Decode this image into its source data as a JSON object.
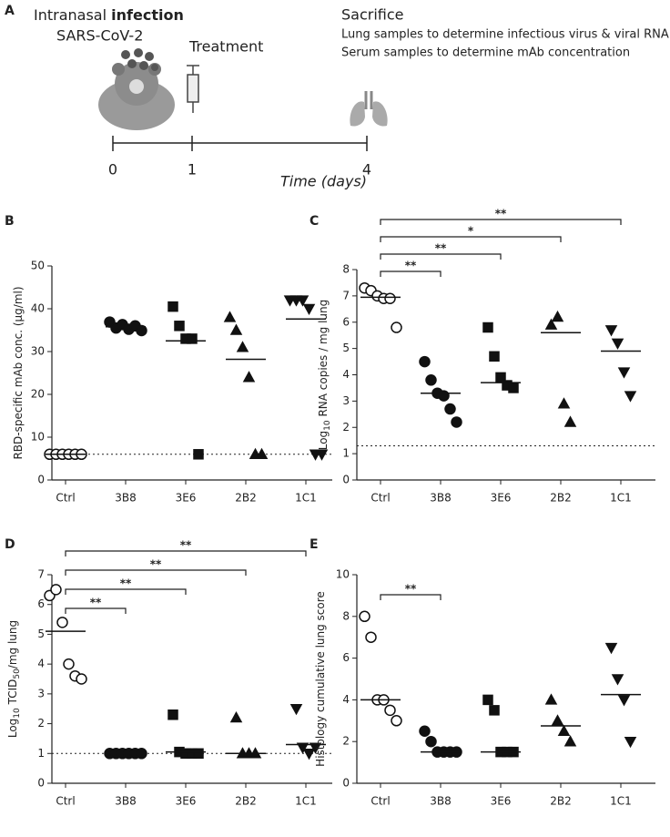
{
  "diagram": {
    "panel": "A",
    "infection_prefix": "Intranasal",
    "infection_bold": "infection",
    "virus": "SARS-CoV-2",
    "treatment": "Treatment",
    "sacrifice": "Sacrifice",
    "notes": [
      "Lung samples to determine infectious virus & viral RNA",
      "Serum samples to determine mAb concentration"
    ],
    "timeline": {
      "ticks": [
        0,
        1,
        4
      ],
      "label": "Time (days)"
    }
  },
  "chart_data": [
    {
      "type": "dot",
      "panel": "B",
      "ylabel": [
        {
          "text": "RBD-specific mAb conc. (µg/ml)"
        }
      ],
      "categories": [
        "Ctrl",
        "3B8",
        "3E6",
        "2B2",
        "1C1"
      ],
      "markers": [
        "open-circle",
        "circle",
        "square",
        "triangle",
        "triangle-down"
      ],
      "values": [
        [
          6,
          6,
          6,
          6,
          6,
          6
        ],
        [
          36.9,
          35.5,
          36.3,
          35.2,
          36,
          34.9
        ],
        [
          40.5,
          36,
          33,
          33,
          6
        ],
        [
          38,
          35,
          31,
          24,
          6,
          6
        ],
        [
          42,
          42,
          42,
          40,
          6,
          6
        ]
      ],
      "center_lines": [
        6,
        35.8,
        32.5,
        28.2,
        37.6
      ],
      "reference_line": 6,
      "ylim": [
        0,
        50
      ],
      "yticks": [
        0,
        10,
        20,
        30,
        40,
        50
      ],
      "brackets": []
    },
    {
      "type": "dot",
      "panel": "C",
      "ylabel": [
        {
          "text": "Log"
        },
        {
          "text": "10",
          "sub": true
        },
        {
          "text": " RNA copies / mg lung"
        }
      ],
      "categories": [
        "Ctrl",
        "3B8",
        "3E6",
        "2B2",
        "1C1"
      ],
      "markers": [
        "open-circle",
        "circle",
        "square",
        "triangle",
        "triangle-down"
      ],
      "values": [
        [
          7.3,
          7.2,
          7,
          6.9,
          6.9,
          5.8
        ],
        [
          4.5,
          3.8,
          3.3,
          3.2,
          2.7,
          2.2
        ],
        [
          5.8,
          4.7,
          3.9,
          3.6,
          3.5
        ],
        [
          5.9,
          6.2,
          2.9,
          2.2
        ],
        [
          5.7,
          5.2,
          4.1,
          3.2
        ]
      ],
      "center_lines": [
        6.95,
        3.3,
        3.7,
        5.6,
        4.9
      ],
      "reference_line": 1.3,
      "ylim": [
        0,
        8
      ],
      "yticks": [
        0,
        1,
        2,
        3,
        4,
        5,
        6,
        7,
        8
      ],
      "brackets": [
        {
          "between": [
            "Ctrl",
            "3B8"
          ],
          "label": "**"
        },
        {
          "between": [
            "Ctrl",
            "3E6"
          ],
          "label": "**"
        },
        {
          "between": [
            "Ctrl",
            "2B2"
          ],
          "label": "*"
        },
        {
          "between": [
            "Ctrl",
            "1C1"
          ],
          "label": "**"
        }
      ]
    },
    {
      "type": "dot",
      "panel": "D",
      "ylabel": [
        {
          "text": "Log"
        },
        {
          "text": "10",
          "sub": true
        },
        {
          "text": " TCID"
        },
        {
          "text": "50",
          "sub": true
        },
        {
          "text": "/mg lung"
        }
      ],
      "categories": [
        "Ctrl",
        "3B8",
        "3E6",
        "2B2",
        "1C1"
      ],
      "markers": [
        "open-circle",
        "circle",
        "square",
        "triangle",
        "triangle-down"
      ],
      "values": [
        [
          6.3,
          6.5,
          5.4,
          4,
          3.6,
          3.5
        ],
        [
          1,
          1,
          1,
          1,
          1,
          1
        ],
        [
          2.3,
          1.05,
          1,
          1,
          1
        ],
        [
          2.2,
          1,
          1,
          1
        ],
        [
          2.5,
          1.2,
          1,
          1.2
        ]
      ],
      "center_lines": [
        5.1,
        1,
        1.05,
        1,
        1.3
      ],
      "reference_line": 1,
      "ylim": [
        0,
        7
      ],
      "yticks": [
        0,
        1,
        2,
        3,
        4,
        5,
        6,
        7
      ],
      "brackets": [
        {
          "between": [
            "Ctrl",
            "3B8"
          ],
          "label": "**"
        },
        {
          "between": [
            "Ctrl",
            "3E6"
          ],
          "label": "**"
        },
        {
          "between": [
            "Ctrl",
            "2B2"
          ],
          "label": "**"
        },
        {
          "between": [
            "Ctrl",
            "1C1"
          ],
          "label": "**"
        }
      ]
    },
    {
      "type": "dot",
      "panel": "E",
      "ylabel": [
        {
          "text": "Histology cumulative lung score"
        }
      ],
      "categories": [
        "Ctrl",
        "3B8",
        "3E6",
        "2B2",
        "1C1"
      ],
      "markers": [
        "open-circle",
        "circle",
        "square",
        "triangle",
        "triangle-down"
      ],
      "values": [
        [
          8,
          7,
          4,
          4,
          3.5,
          3
        ],
        [
          2.5,
          2,
          1.5,
          1.5,
          1.5,
          1.5
        ],
        [
          4,
          3.5,
          1.5,
          1.5,
          1.5
        ],
        [
          4,
          3,
          2.5,
          2
        ],
        [
          6.5,
          5,
          4,
          2
        ]
      ],
      "center_lines": [
        4,
        1.5,
        1.5,
        2.75,
        4.25
      ],
      "ylim": [
        0,
        10
      ],
      "yticks": [
        0,
        2,
        4,
        6,
        8,
        10
      ],
      "brackets": [
        {
          "between": [
            "Ctrl",
            "3B8"
          ],
          "label": "**"
        }
      ]
    }
  ]
}
